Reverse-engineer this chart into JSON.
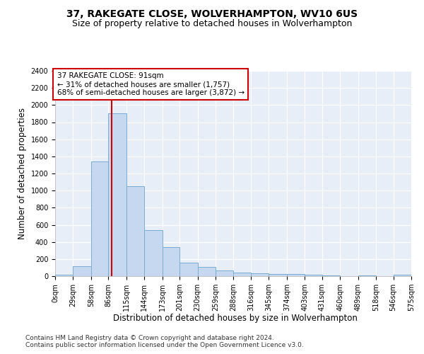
{
  "title": "37, RAKEGATE CLOSE, WOLVERHAMPTON, WV10 6US",
  "subtitle": "Size of property relative to detached houses in Wolverhampton",
  "xlabel": "Distribution of detached houses by size in Wolverhampton",
  "ylabel": "Number of detached properties",
  "bin_edges": [
    0,
    29,
    58,
    86,
    115,
    144,
    173,
    201,
    230,
    259,
    288,
    316,
    345,
    374,
    403,
    431,
    460,
    489,
    518,
    546,
    575
  ],
  "bar_heights": [
    15,
    120,
    1340,
    1900,
    1050,
    540,
    340,
    160,
    110,
    65,
    40,
    35,
    28,
    25,
    15,
    5,
    0,
    5,
    0,
    20
  ],
  "bar_color": "#c5d8f0",
  "bar_edgecolor": "#7aadd4",
  "property_size": 91,
  "annotation_title": "37 RAKEGATE CLOSE: 91sqm",
  "annotation_line1": "← 31% of detached houses are smaller (1,757)",
  "annotation_line2": "68% of semi-detached houses are larger (3,872) →",
  "annotation_box_color": "#ffffff",
  "annotation_box_edgecolor": "#cc0000",
  "vline_color": "#cc0000",
  "ylim": [
    0,
    2400
  ],
  "yticks": [
    0,
    200,
    400,
    600,
    800,
    1000,
    1200,
    1400,
    1600,
    1800,
    2000,
    2200,
    2400
  ],
  "tick_labels": [
    "0sqm",
    "29sqm",
    "58sqm",
    "86sqm",
    "115sqm",
    "144sqm",
    "173sqm",
    "201sqm",
    "230sqm",
    "259sqm",
    "288sqm",
    "316sqm",
    "345sqm",
    "374sqm",
    "403sqm",
    "431sqm",
    "460sqm",
    "489sqm",
    "518sqm",
    "546sqm",
    "575sqm"
  ],
  "footer_line1": "Contains HM Land Registry data © Crown copyright and database right 2024.",
  "footer_line2": "Contains public sector information licensed under the Open Government Licence v3.0.",
  "bg_color": "#e8eef8",
  "grid_color": "#ffffff",
  "fig_bg_color": "#ffffff",
  "title_fontsize": 10,
  "subtitle_fontsize": 9,
  "axis_label_fontsize": 8.5,
  "tick_fontsize": 7,
  "footer_fontsize": 6.5,
  "annotation_fontsize": 7.5
}
